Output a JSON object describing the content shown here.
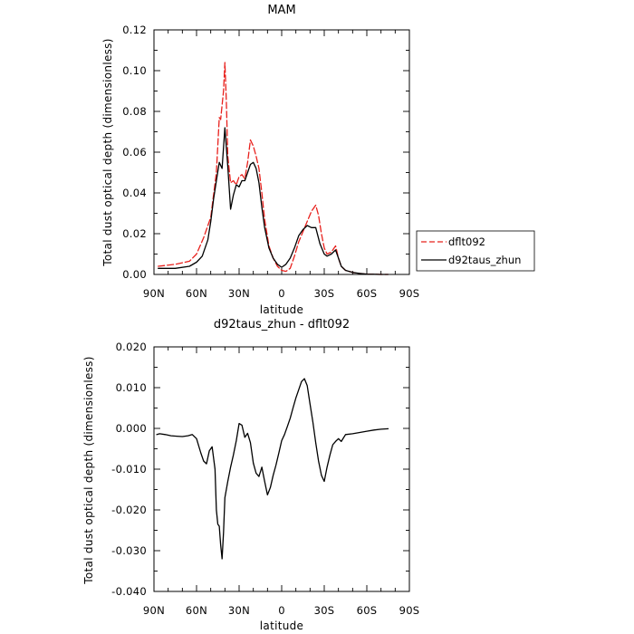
{
  "chart_data": [
    {
      "type": "line",
      "title": "MAM",
      "xlabel": "latitude",
      "ylabel": "Total dust optical depth (dimensionless)",
      "x_ticks": [
        "90N",
        "60N",
        "30N",
        "0",
        "30S",
        "60S",
        "90S"
      ],
      "y_ticks": [
        "0.00",
        "0.02",
        "0.04",
        "0.06",
        "0.08",
        "0.10",
        "0.12"
      ],
      "xlim": [
        90,
        -90
      ],
      "ylim": [
        0,
        0.12
      ],
      "legend_position": "right",
      "series": [
        {
          "name": "dflt092",
          "color": "#e8201c",
          "dash": "dashed",
          "x": [
            87,
            75,
            65,
            60,
            55,
            50,
            46,
            44,
            43,
            41,
            40,
            39,
            38,
            36,
            34,
            32,
            30,
            28,
            26,
            24,
            22,
            20,
            18,
            16,
            14,
            12,
            9,
            6,
            3,
            0,
            -3,
            -6,
            -9,
            -12,
            -15,
            -18,
            -21,
            -24,
            -26,
            -28,
            -30,
            -32,
            -35,
            -38,
            -40,
            -42,
            -45,
            -50,
            -55,
            -60,
            -65,
            -70,
            -75
          ],
          "y": [
            0.004,
            0.005,
            0.0065,
            0.01,
            0.018,
            0.028,
            0.05,
            0.077,
            0.076,
            0.09,
            0.104,
            0.085,
            0.058,
            0.045,
            0.046,
            0.044,
            0.048,
            0.049,
            0.047,
            0.055,
            0.066,
            0.063,
            0.058,
            0.052,
            0.04,
            0.027,
            0.014,
            0.008,
            0.004,
            0.002,
            0.0015,
            0.003,
            0.009,
            0.016,
            0.021,
            0.026,
            0.031,
            0.034,
            0.029,
            0.02,
            0.013,
            0.01,
            0.011,
            0.014,
            0.008,
            0.004,
            0.002,
            0.001,
            0.0005,
            0.0002,
            0.0001,
            0,
            0
          ]
        },
        {
          "name": "d92taus_zhun",
          "color": "#000000",
          "dash": "solid",
          "x": [
            87,
            75,
            65,
            60,
            56,
            52,
            50,
            48,
            46,
            44,
            42,
            40,
            38,
            36,
            34,
            32,
            30,
            28,
            26,
            24,
            22,
            20,
            18,
            16,
            14,
            12,
            9,
            6,
            3,
            0,
            -3,
            -6,
            -9,
            -12,
            -15,
            -18,
            -21,
            -24,
            -27,
            -30,
            -32,
            -35,
            -38,
            -40,
            -42,
            -45,
            -50,
            -55,
            -60,
            -65,
            -70,
            -75
          ],
          "y": [
            0.003,
            0.003,
            0.004,
            0.006,
            0.009,
            0.017,
            0.026,
            0.037,
            0.046,
            0.055,
            0.052,
            0.072,
            0.053,
            0.032,
            0.039,
            0.044,
            0.043,
            0.046,
            0.046,
            0.05,
            0.054,
            0.055,
            0.052,
            0.045,
            0.033,
            0.023,
            0.013,
            0.008,
            0.005,
            0.0035,
            0.005,
            0.008,
            0.013,
            0.019,
            0.022,
            0.024,
            0.023,
            0.023,
            0.015,
            0.01,
            0.009,
            0.01,
            0.012,
            0.008,
            0.004,
            0.002,
            0.001,
            0.0005,
            0.0002,
            0.0001,
            0,
            0
          ]
        }
      ]
    },
    {
      "type": "line",
      "title": "d92taus_zhun - dflt092",
      "xlabel": "latitude",
      "ylabel": "Total dust optical depth (dimensionless)",
      "x_ticks": [
        "90N",
        "60N",
        "30N",
        "0",
        "30S",
        "60S",
        "90S"
      ],
      "y_ticks": [
        "-0.040",
        "-0.030",
        "-0.020",
        "-0.010",
        "0.000",
        "0.010",
        "0.020"
      ],
      "xlim": [
        90,
        -90
      ],
      "ylim": [
        -0.04,
        0.02
      ],
      "series": [
        {
          "color": "#000000",
          "dash": "solid",
          "x": [
            88,
            86,
            82,
            78,
            74,
            70,
            66,
            63,
            60,
            57,
            55,
            53,
            51,
            49,
            47,
            46,
            45,
            44,
            43,
            42,
            41,
            40,
            38,
            36,
            34,
            32,
            30,
            28,
            26,
            24,
            22,
            20,
            18,
            16,
            14,
            12,
            10,
            8,
            6,
            4,
            2,
            0,
            -2,
            -4,
            -6,
            -8,
            -10,
            -12,
            -14,
            -16,
            -18,
            -20,
            -22,
            -24,
            -26,
            -28,
            -30,
            -32,
            -34,
            -36,
            -38,
            -40,
            -42,
            -45,
            -50,
            -55,
            -60,
            -65,
            -70,
            -75
          ],
          "y": [
            -0.0015,
            -0.0013,
            -0.0015,
            -0.0018,
            -0.0019,
            -0.002,
            -0.0018,
            -0.0015,
            -0.0025,
            -0.006,
            -0.008,
            -0.0087,
            -0.0055,
            -0.0045,
            -0.01,
            -0.02,
            -0.0235,
            -0.024,
            -0.0285,
            -0.032,
            -0.0255,
            -0.017,
            -0.013,
            -0.0095,
            -0.0065,
            -0.003,
            0.0012,
            0.0008,
            -0.0022,
            -0.0012,
            -0.0035,
            -0.0085,
            -0.011,
            -0.0118,
            -0.0095,
            -0.013,
            -0.0163,
            -0.0145,
            -0.0115,
            -0.009,
            -0.006,
            -0.003,
            -0.0015,
            0.0005,
            0.0025,
            0.005,
            0.0075,
            0.0095,
            0.0115,
            0.0122,
            0.0105,
            0.006,
            0.0015,
            -0.0035,
            -0.008,
            -0.0115,
            -0.013,
            -0.0095,
            -0.0065,
            -0.004,
            -0.0032,
            -0.0025,
            -0.0032,
            -0.0015,
            -0.0013,
            -0.001,
            -0.0007,
            -0.0004,
            -0.0002,
            -0.0001
          ]
        }
      ]
    }
  ]
}
